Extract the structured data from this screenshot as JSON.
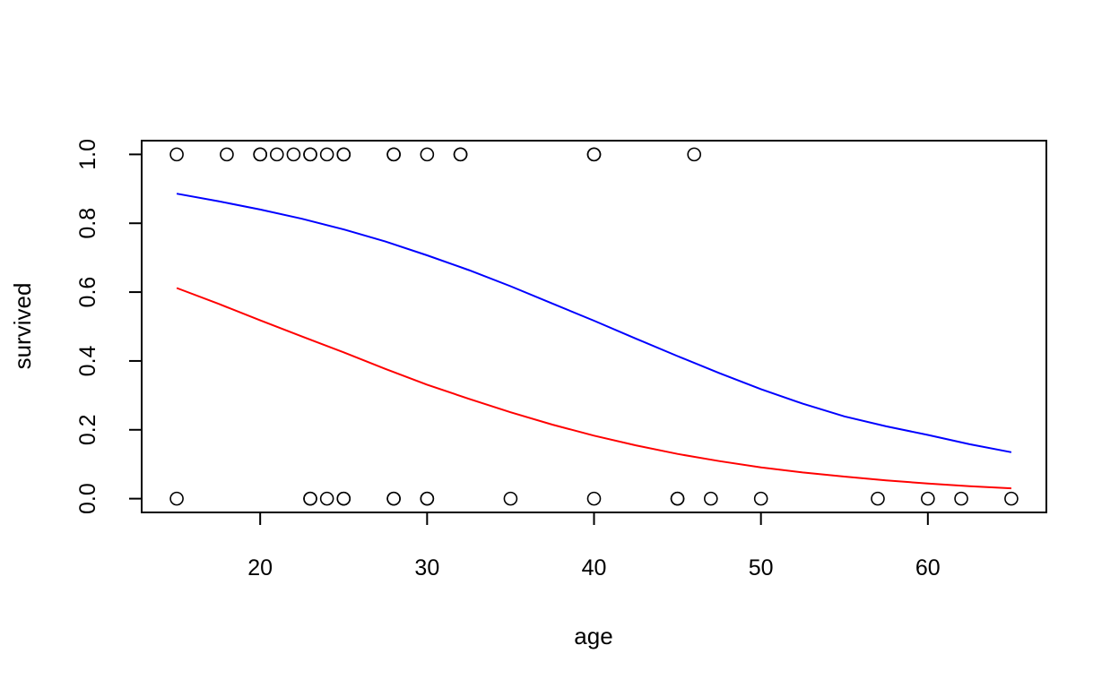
{
  "chart_data": {
    "type": "scatter",
    "title": "",
    "xlabel": "age",
    "ylabel": "survived",
    "xlim": [
      12.9,
      67.1
    ],
    "ylim": [
      -0.04,
      1.04
    ],
    "x_ticks": [
      20,
      30,
      40,
      50,
      60
    ],
    "y_ticks": [
      0.0,
      0.2,
      0.4,
      0.6,
      0.8,
      1.0
    ],
    "x_tick_labels": [
      "20",
      "30",
      "40",
      "50",
      "60"
    ],
    "y_tick_labels": [
      "0.0",
      "0.2",
      "0.4",
      "0.6",
      "0.8",
      "1.0"
    ],
    "grid": false,
    "points": {
      "marker": "open-circle",
      "x": [
        15,
        18,
        20,
        20,
        21,
        22,
        23,
        23,
        24,
        25,
        25,
        28,
        28,
        30,
        32,
        32,
        40,
        40,
        46,
        15,
        23,
        23,
        24,
        25,
        25,
        28,
        28,
        30,
        30,
        35,
        40,
        45,
        45,
        47,
        50,
        57,
        60,
        62,
        65
      ],
      "y": [
        1,
        1,
        1,
        1,
        1,
        1,
        1,
        1,
        1,
        1,
        1,
        1,
        1,
        1,
        1,
        1,
        1,
        1,
        1,
        0,
        0,
        0,
        0,
        0,
        0,
        0,
        0,
        0,
        0,
        0,
        0,
        0,
        0,
        0,
        0,
        0,
        0,
        0,
        0
      ]
    },
    "series": [
      {
        "color": "#0000ff",
        "x": [
          15,
          17.5,
          20,
          22.5,
          25,
          27.5,
          30,
          32.5,
          35,
          37.5,
          40,
          42.5,
          45,
          47.5,
          50,
          52.5,
          55,
          57.5,
          60,
          62.5,
          65
        ],
        "values": [
          0.886,
          0.864,
          0.84,
          0.813,
          0.782,
          0.747,
          0.707,
          0.664,
          0.617,
          0.567,
          0.517,
          0.465,
          0.414,
          0.365,
          0.318,
          0.276,
          0.239,
          0.21,
          0.185,
          0.158,
          0.135
        ]
      },
      {
        "color": "#ff0000",
        "x": [
          15,
          17.5,
          20,
          22.5,
          25,
          27.5,
          30,
          32.5,
          35,
          37.5,
          40,
          42.5,
          45,
          47.5,
          50,
          52.5,
          55,
          57.5,
          60,
          62.5,
          65
        ],
        "values": [
          0.612,
          0.566,
          0.518,
          0.471,
          0.425,
          0.377,
          0.331,
          0.29,
          0.251,
          0.215,
          0.183,
          0.155,
          0.13,
          0.109,
          0.091,
          0.076,
          0.064,
          0.053,
          0.044,
          0.036,
          0.03
        ]
      }
    ]
  }
}
